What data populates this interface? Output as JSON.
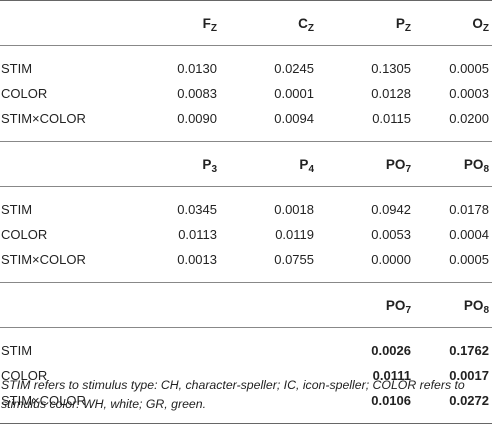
{
  "block1": {
    "headers": [
      {
        "main": "F",
        "sub": "Z"
      },
      {
        "main": "C",
        "sub": "Z"
      },
      {
        "main": "P",
        "sub": "Z"
      },
      {
        "main": "O",
        "sub": "Z"
      }
    ],
    "rows": [
      {
        "label": "STIM",
        "values": [
          "0.0130",
          "0.0245",
          "0.1305",
          "0.0005"
        ]
      },
      {
        "label": "COLOR",
        "values": [
          "0.0083",
          "0.0001",
          "0.0128",
          "0.0003"
        ]
      },
      {
        "label": "STIM×COLOR",
        "values": [
          "0.0090",
          "0.0094",
          "0.0115",
          "0.0200"
        ]
      }
    ]
  },
  "block2": {
    "headers": [
      {
        "main": "P",
        "sub": "3"
      },
      {
        "main": "P",
        "sub": "4"
      },
      {
        "main": "PO",
        "sub": "7"
      },
      {
        "main": "PO",
        "sub": "8"
      }
    ],
    "rows": [
      {
        "label": "STIM",
        "values": [
          "0.0345",
          "0.0018",
          "0.0942",
          "0.0178"
        ]
      },
      {
        "label": "COLOR",
        "values": [
          "0.0113",
          "0.0119",
          "0.0053",
          "0.0004"
        ]
      },
      {
        "label": "STIM×COLOR",
        "values": [
          "0.0013",
          "0.0755",
          "0.0000",
          "0.0005"
        ]
      }
    ]
  },
  "block3": {
    "headers": [
      {
        "main": "PO",
        "sub": "7"
      },
      {
        "main": "PO",
        "sub": "8"
      }
    ],
    "rows": [
      {
        "label": "STIM",
        "values": [
          "0.0026",
          "0.1762"
        ]
      },
      {
        "label": "COLOR",
        "values": [
          "0.0111",
          "0.0017"
        ]
      },
      {
        "label": "STIM×COLOR",
        "values": [
          "0.0106",
          "0.0272"
        ]
      }
    ]
  },
  "footnote": "STIM refers to stimulus type: CH, character-speller; IC, icon-speller; COLOR refers to stimulus color: WH, white; GR, green."
}
